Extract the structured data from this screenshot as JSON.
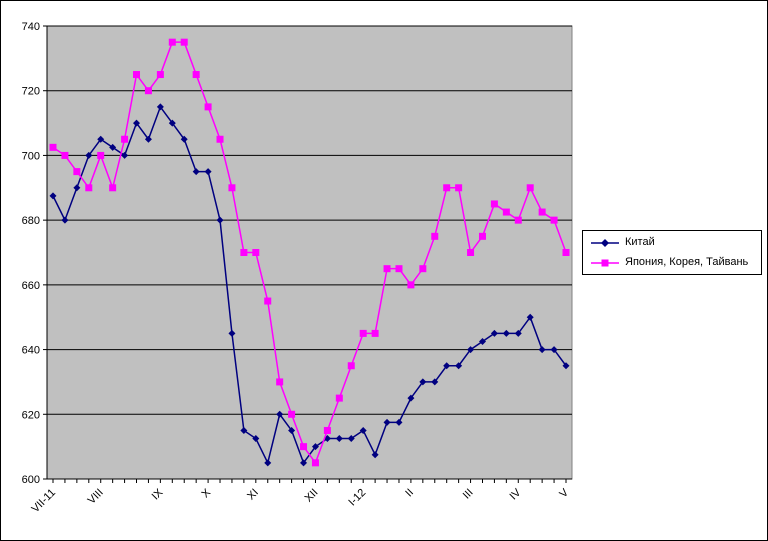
{
  "chart_data": {
    "type": "line",
    "ylim": [
      600,
      740
    ],
    "yticks": [
      600,
      620,
      640,
      660,
      680,
      700,
      720,
      740
    ],
    "grid": true,
    "legend_position": "right",
    "x_tick_labels": [
      {
        "label": "VII-11",
        "index": 0
      },
      {
        "label": "VIII",
        "index": 4
      },
      {
        "label": "IX",
        "index": 9
      },
      {
        "label": "X",
        "index": 13
      },
      {
        "label": "XI",
        "index": 17
      },
      {
        "label": "XII",
        "index": 22
      },
      {
        "label": "I-12",
        "index": 26
      },
      {
        "label": "II",
        "index": 30
      },
      {
        "label": "III",
        "index": 35
      },
      {
        "label": "IV",
        "index": 39
      },
      {
        "label": "V",
        "index": 43
      }
    ],
    "series": [
      {
        "name": "Китай",
        "color": "#000080",
        "marker": "diamond",
        "values": [
          687.5,
          680,
          690,
          700,
          705,
          702.5,
          700,
          710,
          705,
          715,
          710,
          705,
          695,
          695,
          680,
          645,
          615,
          612.5,
          605,
          620,
          615,
          605,
          610,
          612.5,
          612.5,
          612.5,
          615,
          607.5,
          617.5,
          617.5,
          625,
          630,
          630,
          635,
          635,
          640,
          642.5,
          645,
          645,
          645,
          650,
          640,
          640,
          635
        ]
      },
      {
        "name": "Япония, Корея, Тайвань",
        "color": "#FF00FF",
        "marker": "square",
        "values": [
          702.5,
          700,
          695,
          690,
          700,
          690,
          705,
          725,
          720,
          725,
          735,
          735,
          725,
          715,
          705,
          690,
          670,
          670,
          655,
          630,
          620,
          610,
          605,
          615,
          625,
          635,
          645,
          645,
          665,
          665,
          660,
          665,
          675,
          690,
          690,
          670,
          675,
          685,
          682.5,
          680,
          690,
          682.5,
          680,
          670
        ]
      }
    ]
  },
  "colors": {
    "plot_background": "#C0C0C0",
    "gridline": "#000000"
  }
}
